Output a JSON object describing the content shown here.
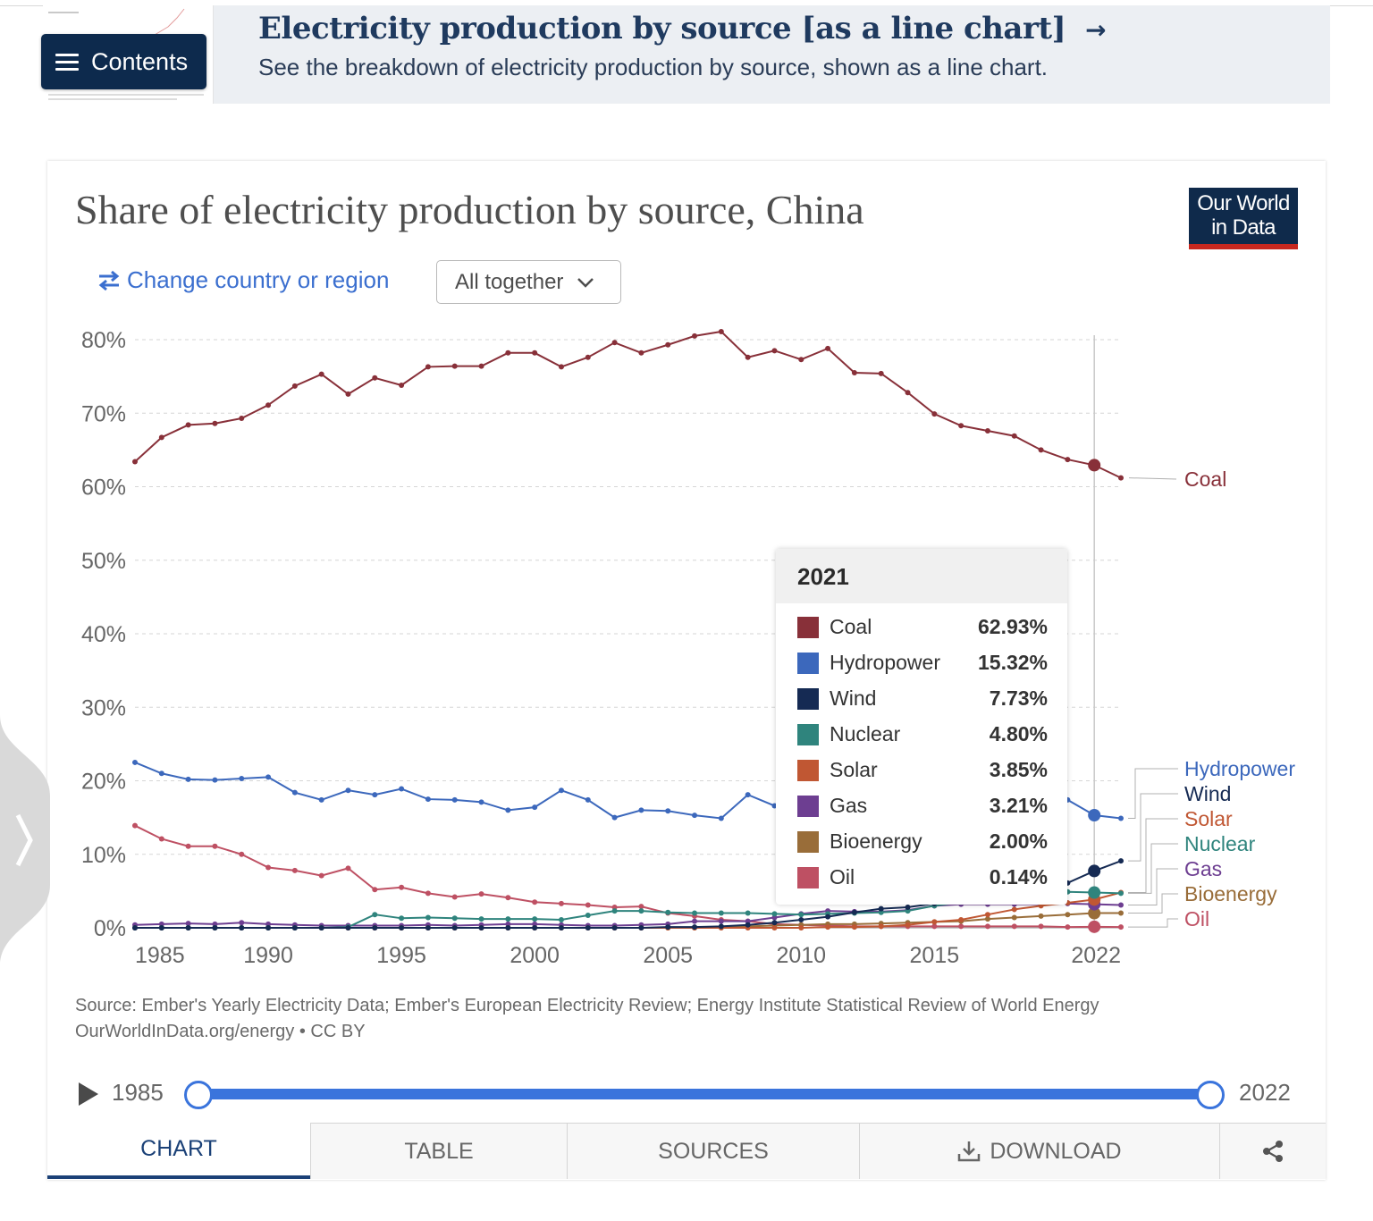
{
  "banner": {
    "title": "Electricity production by source [as a line chart]",
    "subtitle": "See the breakdown of electricity production by source, shown as a line chart.",
    "contents_label": "Contents",
    "arrow_icon": "arrow-right-icon"
  },
  "card": {
    "title": "Share of electricity production by source, China",
    "logo_line1": "Our World",
    "logo_line2": "in Data",
    "change_country_label": "Change country or region",
    "select_value": "All together"
  },
  "chart_data": {
    "type": "line",
    "x": [
      1985,
      1986,
      1987,
      1988,
      1989,
      1990,
      1991,
      1992,
      1993,
      1994,
      1995,
      1996,
      1997,
      1998,
      1999,
      2000,
      2001,
      2002,
      2003,
      2004,
      2005,
      2006,
      2007,
      2008,
      2009,
      2010,
      2011,
      2012,
      2013,
      2014,
      2015,
      2016,
      2017,
      2018,
      2019,
      2020,
      2021,
      2022
    ],
    "xticks": [
      "1985",
      "1990",
      "1995",
      "2000",
      "2005",
      "2010",
      "2015",
      "2022"
    ],
    "yticks": [
      "0%",
      "10%",
      "20%",
      "30%",
      "40%",
      "50%",
      "60%",
      "70%",
      "80%"
    ],
    "ylim": [
      0,
      80
    ],
    "highlight_year": 2021,
    "series": [
      {
        "name": "Coal",
        "color": "#883039",
        "values": [
          63.4,
          66.7,
          68.4,
          68.6,
          69.3,
          71.1,
          73.7,
          75.3,
          72.6,
          74.8,
          73.8,
          76.3,
          76.4,
          76.4,
          78.2,
          78.2,
          76.3,
          77.6,
          79.6,
          78.2,
          79.3,
          80.5,
          81.1,
          77.6,
          78.5,
          77.3,
          78.8,
          75.5,
          75.4,
          72.8,
          69.9,
          68.3,
          67.6,
          66.9,
          65.0,
          63.7,
          62.93,
          61.2
        ]
      },
      {
        "name": "Hydropower",
        "color": "#3c68bc",
        "values": [
          22.5,
          21.0,
          20.2,
          20.1,
          20.3,
          20.5,
          18.4,
          17.4,
          18.7,
          18.1,
          18.9,
          17.5,
          17.4,
          17.1,
          16.0,
          16.4,
          18.7,
          17.4,
          15.0,
          16.0,
          15.9,
          15.3,
          14.9,
          18.1,
          16.6,
          16.3,
          14.1,
          17.1,
          16.6,
          18.9,
          19.4,
          19.4,
          18.5,
          17.6,
          17.8,
          17.4,
          15.32,
          14.9
        ]
      },
      {
        "name": "Wind",
        "color": "#152a53",
        "values": [
          0,
          0,
          0,
          0,
          0,
          0,
          0,
          0,
          0,
          0,
          0,
          0,
          0,
          0,
          0,
          0,
          0,
          0,
          0,
          0,
          0.1,
          0.1,
          0.2,
          0.4,
          0.7,
          1.1,
          1.5,
          2.1,
          2.6,
          2.8,
          3.3,
          3.9,
          4.7,
          5.2,
          5.5,
          6.1,
          7.73,
          9.1
        ]
      },
      {
        "name": "Nuclear",
        "color": "#2f847d",
        "values": [
          0,
          0,
          0,
          0,
          0,
          0,
          0,
          0,
          0.1,
          1.8,
          1.3,
          1.4,
          1.3,
          1.2,
          1.2,
          1.2,
          1.1,
          1.7,
          2.3,
          2.3,
          2.1,
          2.0,
          2.0,
          2.0,
          1.9,
          1.8,
          1.9,
          2.0,
          2.1,
          2.3,
          3.0,
          3.5,
          3.9,
          4.2,
          4.7,
          4.9,
          4.8,
          4.7
        ]
      },
      {
        "name": "Solar",
        "color": "#c05733",
        "values": [
          0,
          0,
          0,
          0,
          0,
          0,
          0,
          0,
          0,
          0,
          0,
          0,
          0,
          0,
          0,
          0,
          0,
          0,
          0,
          0,
          0,
          0,
          0,
          0,
          0,
          0,
          0.1,
          0.1,
          0.2,
          0.4,
          0.8,
          1.1,
          1.8,
          2.5,
          3.0,
          3.4,
          3.85,
          4.8
        ]
      },
      {
        "name": "Gas",
        "color": "#6d3e91",
        "values": [
          0.4,
          0.5,
          0.6,
          0.5,
          0.7,
          0.5,
          0.4,
          0.3,
          0.3,
          0.3,
          0.3,
          0.4,
          0.3,
          0.4,
          0.5,
          0.5,
          0.4,
          0.3,
          0.3,
          0.4,
          0.5,
          0.9,
          0.9,
          0.9,
          1.4,
          1.9,
          2.3,
          2.2,
          2.2,
          2.4,
          3.0,
          3.2,
          3.2,
          3.2,
          3.2,
          3.3,
          3.21,
          3.1
        ]
      },
      {
        "name": "Bioenergy",
        "color": "#996d39",
        "values": [
          0,
          0,
          0,
          0,
          0,
          0,
          0,
          0,
          0,
          0,
          0,
          0,
          0,
          0,
          0,
          0,
          0,
          0,
          0,
          0,
          0,
          0,
          0.1,
          0.2,
          0.3,
          0.4,
          0.5,
          0.5,
          0.6,
          0.7,
          0.8,
          0.9,
          1.2,
          1.4,
          1.6,
          1.8,
          2.0,
          2.0
        ]
      },
      {
        "name": "Oil",
        "color": "#be5063",
        "values": [
          13.9,
          12.1,
          11.1,
          11.1,
          10.0,
          8.2,
          7.8,
          7.1,
          8.1,
          5.2,
          5.5,
          4.7,
          4.2,
          4.6,
          4.1,
          3.5,
          3.3,
          3.1,
          2.8,
          2.9,
          2.0,
          1.6,
          1.1,
          0.9,
          0.5,
          0.4,
          0.3,
          0.2,
          0.2,
          0.2,
          0.2,
          0.2,
          0.2,
          0.2,
          0.2,
          0.1,
          0.14,
          0.1
        ]
      }
    ]
  },
  "tooltip": {
    "year": "2021",
    "rows": [
      {
        "name": "Coal",
        "value": "62.93%",
        "color": "#883039"
      },
      {
        "name": "Hydropower",
        "value": "15.32%",
        "color": "#3c68bc"
      },
      {
        "name": "Wind",
        "value": "7.73%",
        "color": "#152a53"
      },
      {
        "name": "Nuclear",
        "value": "4.80%",
        "color": "#2f847d"
      },
      {
        "name": "Solar",
        "value": "3.85%",
        "color": "#c05733"
      },
      {
        "name": "Gas",
        "value": "3.21%",
        "color": "#6d3e91"
      },
      {
        "name": "Bioenergy",
        "value": "2.00%",
        "color": "#996d39"
      },
      {
        "name": "Oil",
        "value": "0.14%",
        "color": "#be5063"
      }
    ]
  },
  "source": {
    "line1": "Source: Ember's Yearly Electricity Data; Ember's European Electricity Review; Energy Institute Statistical Review of World Energy",
    "line2": "OurWorldInData.org/energy • CC BY"
  },
  "timeline": {
    "start": "1985",
    "end": "2022"
  },
  "tabs": {
    "chart": "CHART",
    "table": "TABLE",
    "sources": "SOURCES",
    "download": "DOWNLOAD"
  }
}
